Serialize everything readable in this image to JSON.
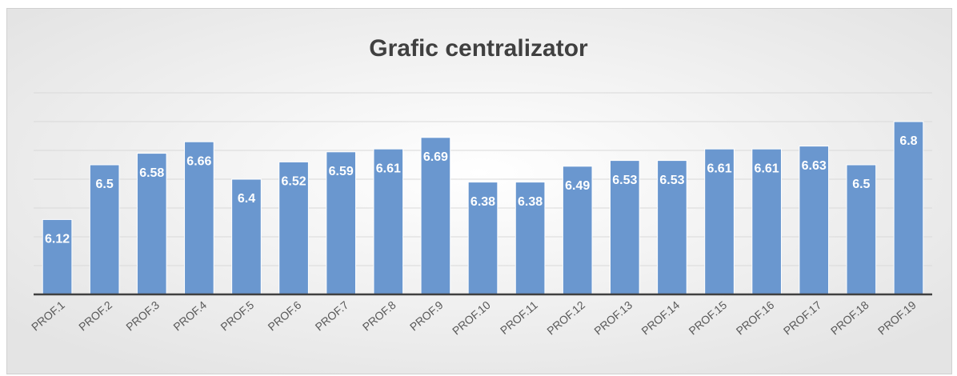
{
  "chart_data": {
    "type": "bar",
    "title": "Grafic centralizator",
    "categories": [
      "PROF.1",
      "PROF.2",
      "PROF.3",
      "PROF.4",
      "PROF.5",
      "PROF.6",
      "PROF.7",
      "PROF.8",
      "PROF.9",
      "PROF.10",
      "PROF.11",
      "PROF.12",
      "PROF.13",
      "PROF.14",
      "PROF.15",
      "PROF.16",
      "PROF.17",
      "PROF.18",
      "PROF.19"
    ],
    "values": [
      6.12,
      6.5,
      6.58,
      6.66,
      6.4,
      6.52,
      6.59,
      6.61,
      6.69,
      6.38,
      6.38,
      6.49,
      6.53,
      6.53,
      6.61,
      6.61,
      6.63,
      6.5,
      6.8
    ],
    "color": "#6a97cf",
    "ylim": [
      5.6,
      7.0
    ],
    "yticks": [
      5.6,
      5.8,
      6.0,
      6.2,
      6.4,
      6.6,
      6.8,
      7.0
    ],
    "grid": true
  }
}
